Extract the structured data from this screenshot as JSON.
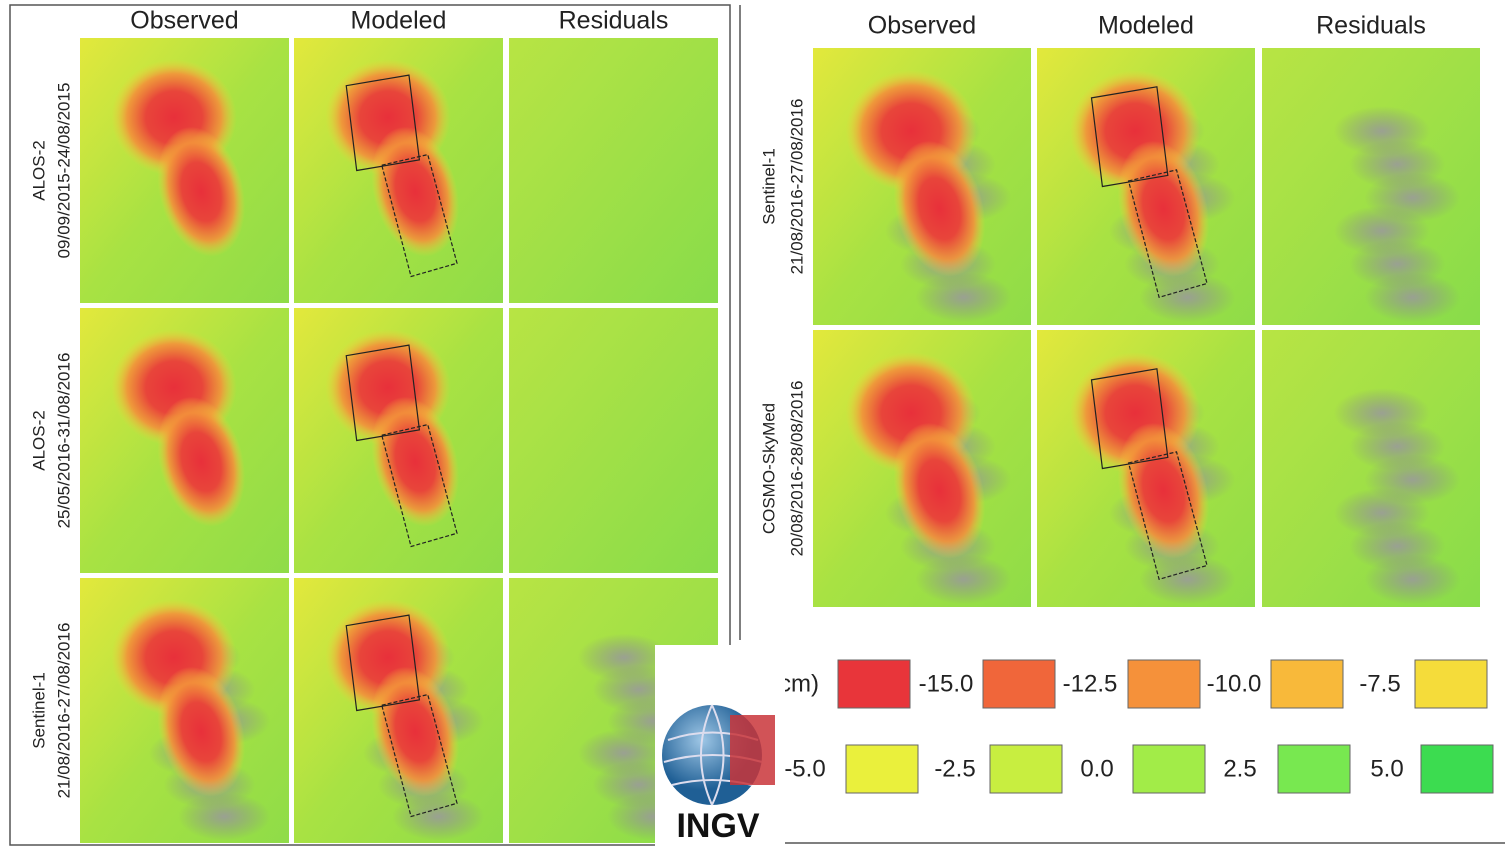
{
  "left": {
    "columns": [
      "Observed",
      "Modeled",
      "Residuals"
    ],
    "rows": [
      {
        "satellite": "ALOS-2",
        "dates": "09/09/2015-24/08/2015"
      },
      {
        "satellite": "ALOS-2",
        "dates": "25/05/2016-31/08/2016"
      },
      {
        "satellite": "Sentinel-1",
        "dates": "21/08/2016-27/08/2016"
      }
    ]
  },
  "right": {
    "columns": [
      "Observed",
      "Modeled",
      "Residuals"
    ],
    "rows": [
      {
        "satellite": "Sentinel-1",
        "dates": "21/08/2016-27/08/2016"
      },
      {
        "satellite": "COSMO-SkyMed",
        "dates": "20/08/2016-28/08/2016"
      }
    ]
  },
  "legend": {
    "unit": "(cm)",
    "labels": [
      "-15.0",
      "-12.5",
      "-10.0",
      "-7.5",
      "-5.0",
      "-2.5",
      "0.0",
      "2.5",
      "5.0"
    ],
    "colors": [
      "#e8353a",
      "#f0663a",
      "#f5913a",
      "#f8b93a",
      "#f5dc3a",
      "#eaf03c",
      "#c8ee40",
      "#a2ec48",
      "#78e850",
      "#3cdc50"
    ]
  },
  "logo": "INGV"
}
